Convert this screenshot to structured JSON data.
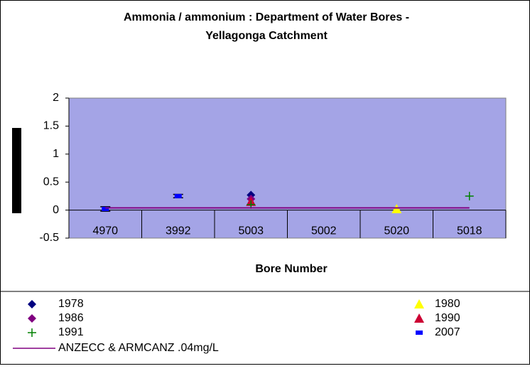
{
  "chart_data": {
    "type": "scatter",
    "title": "Ammonia / ammonium : Department of Water Bores - Yellagonga Catchment",
    "x_label": "Bore Number",
    "categories": [
      "4970",
      "3992",
      "5003",
      "5002",
      "5020",
      "5018"
    ],
    "ylim": [
      -0.5,
      2
    ],
    "yticks": [
      -0.5,
      0,
      0.5,
      1,
      1.5,
      2
    ],
    "background": "#a4a4e6",
    "series": [
      {
        "name": "1978",
        "color": "#000080",
        "marker": "diamond",
        "values": [
          null,
          null,
          0.27,
          null,
          null,
          null
        ]
      },
      {
        "name": "1980",
        "color": "#ffff00",
        "marker": "triangle",
        "values": [
          null,
          null,
          null,
          null,
          0.02,
          null
        ]
      },
      {
        "name": "1986",
        "color": "#800080",
        "marker": "diamond",
        "values": [
          null,
          null,
          0.2,
          null,
          null,
          null
        ]
      },
      {
        "name": "1990",
        "color": "#cc0033",
        "marker": "triangle",
        "values": [
          null,
          null,
          0.15,
          null,
          null,
          null
        ]
      },
      {
        "name": "1991",
        "color": "#008000",
        "marker": "plus",
        "values": [
          null,
          null,
          0.1,
          null,
          null,
          0.25
        ]
      },
      {
        "name": "2007",
        "color": "#0000ff",
        "marker": "dash",
        "values": [
          0.02,
          0.25,
          null,
          null,
          null,
          null
        ],
        "errors": [
          0.04,
          0.03,
          null,
          null,
          null,
          null
        ]
      },
      {
        "name": "ANZECC & ARMCANZ .04mg/L",
        "color": "#800080",
        "marker": "line",
        "values": [
          0.04,
          0.04,
          0.04,
          0.04,
          0.04,
          0.04
        ]
      }
    ]
  }
}
